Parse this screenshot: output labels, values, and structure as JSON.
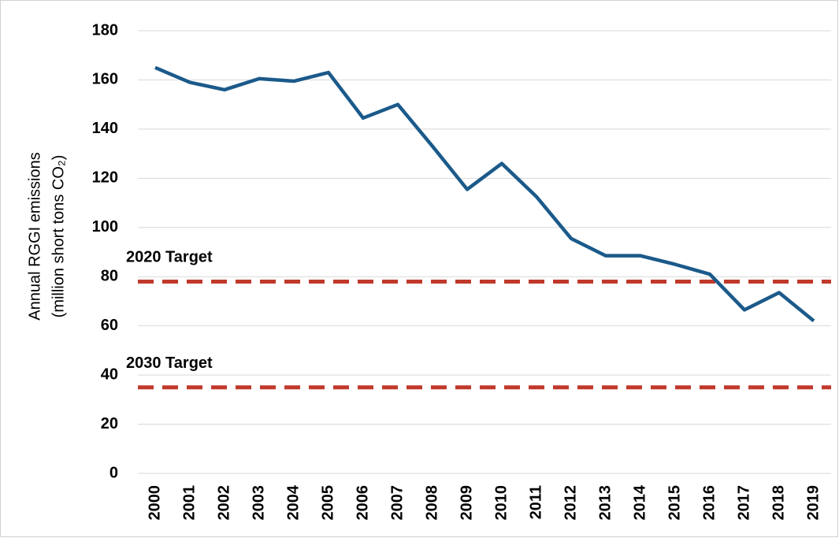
{
  "chart_data": {
    "type": "line",
    "ylabel": [
      "Annual RGGI emissions",
      "(million short tons CO₂)"
    ],
    "categories": [
      "2000",
      "2001",
      "2002",
      "2003",
      "2004",
      "2005",
      "2006",
      "2007",
      "2008",
      "2009",
      "2010",
      "2011",
      "2012",
      "2013",
      "2014",
      "2015",
      "2016",
      "2017",
      "2018",
      "2019"
    ],
    "series": [
      {
        "color": "#1b5a8a",
        "values": [
          165,
          159,
          156,
          160.5,
          159.5,
          163,
          144.5,
          150,
          133,
          115.5,
          126,
          112.5,
          95.5,
          88.5,
          88.5,
          85,
          81,
          66.5,
          73.5,
          62
        ]
      }
    ],
    "targets": [
      {
        "label": "2020 Target",
        "value": 78,
        "color": "#c0392b"
      },
      {
        "label": "2030 Target",
        "value": 35,
        "color": "#c0392b"
      }
    ],
    "ylim": [
      0,
      180
    ],
    "yticks": [
      0,
      20,
      40,
      60,
      80,
      100,
      120,
      140,
      160,
      180
    ],
    "grid": true
  }
}
